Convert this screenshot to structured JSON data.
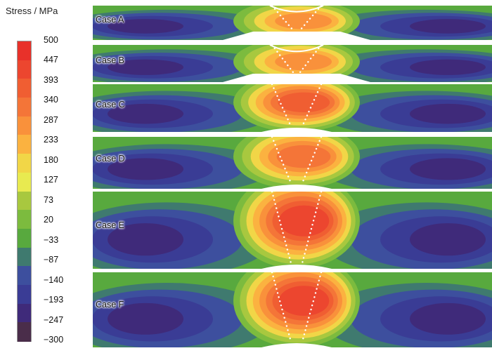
{
  "chart_data": {
    "type": "heatmap",
    "colorbar": {
      "title": "Stress / MPa",
      "ticks": [
        "500",
        "447",
        "393",
        "340",
        "287",
        "233",
        "180",
        "127",
        "73",
        "20",
        "−33",
        "−87",
        "−140",
        "−193",
        "−247",
        "−300"
      ],
      "range": [
        -300,
        500
      ],
      "colors": [
        "#e8312a",
        "#ec462f",
        "#f05e32",
        "#f47538",
        "#f9913b",
        "#fbb240",
        "#f1d647",
        "#e8ea50",
        "#a8c83f",
        "#7cbb3e",
        "#58a93e",
        "#3f7a6f",
        "#3d4f9e",
        "#3a3c95",
        "#3f2a7a",
        "#4a2d4a"
      ]
    },
    "panels": [
      {
        "label": "Case A",
        "peak_stress": 260,
        "ridge": "top"
      },
      {
        "label": "Case B",
        "peak_stress": 300,
        "ridge": "top"
      },
      {
        "label": "Case C",
        "peak_stress": 400,
        "ridge": "bottom"
      },
      {
        "label": "Case D",
        "peak_stress": 350,
        "ridge": "bottom"
      },
      {
        "label": "Case E",
        "peak_stress": 420,
        "ridge": "bottom"
      },
      {
        "label": "Case F",
        "peak_stress": 440,
        "ridge": "bottom"
      }
    ]
  }
}
